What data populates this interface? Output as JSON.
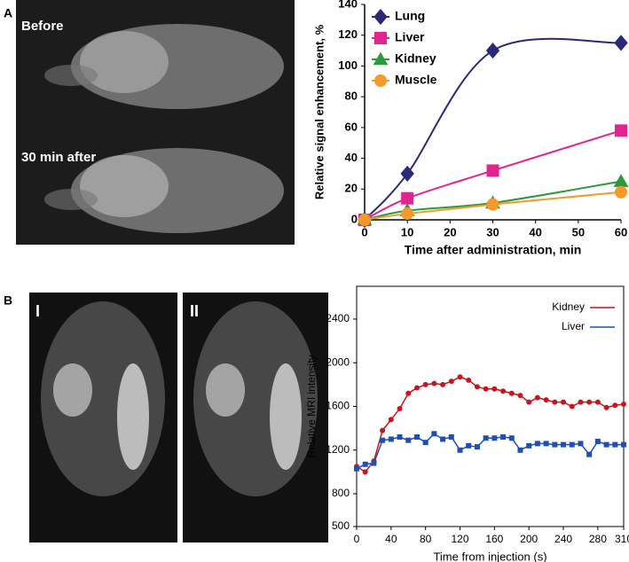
{
  "panels": {
    "a": {
      "label": "A",
      "images": [
        "Before",
        "30 min after"
      ]
    },
    "b": {
      "label": "B",
      "images": [
        "I",
        "II"
      ]
    }
  },
  "chart_data": [
    {
      "type": "line",
      "x": [
        0,
        10,
        30,
        60
      ],
      "xlim": [
        0,
        60
      ],
      "xticks": [
        0,
        10,
        20,
        30,
        40,
        50,
        60
      ],
      "ylim": [
        0,
        140
      ],
      "yticks": [
        0,
        20,
        40,
        60,
        80,
        100,
        120,
        140
      ],
      "xlabel": "Time after administration, min",
      "ylabel": "Relative signal enhancement, %",
      "legend": "upper left",
      "smooth": true,
      "series": [
        {
          "name": "Lung",
          "color": "#2b2878",
          "marker": "diamond",
          "values": [
            0,
            30,
            110,
            115
          ]
        },
        {
          "name": "Liver",
          "color": "#e2248f",
          "marker": "square",
          "values": [
            0,
            14,
            32,
            58
          ]
        },
        {
          "name": "Kidney",
          "color": "#2a9a3c",
          "marker": "triangle",
          "values": [
            0,
            6,
            11,
            25
          ]
        },
        {
          "name": "Muscle",
          "color": "#f39a2b",
          "marker": "circle",
          "values": [
            0,
            4,
            10,
            18
          ]
        }
      ]
    },
    {
      "type": "line",
      "x": [
        0,
        10,
        20,
        30,
        40,
        50,
        60,
        70,
        80,
        90,
        100,
        110,
        120,
        130,
        140,
        150,
        160,
        170,
        180,
        190,
        200,
        210,
        220,
        230,
        240,
        250,
        260,
        270,
        280,
        290,
        300,
        310
      ],
      "xlim": [
        0,
        310
      ],
      "xticks": [
        0,
        40,
        80,
        120,
        160,
        200,
        240,
        280,
        310
      ],
      "ylim": [
        500,
        2700
      ],
      "yticks": [
        500,
        800,
        1200,
        1600,
        2000,
        2400
      ],
      "xlabel": "Time from injection (s)",
      "ylabel": "Relative MRI intensity",
      "legend": "upper right",
      "smooth": false,
      "frame": true,
      "series": [
        {
          "name": "Kidney",
          "color": "#c8141e",
          "marker": "dot",
          "values": [
            1050,
            1000,
            1100,
            1380,
            1480,
            1580,
            1720,
            1770,
            1800,
            1810,
            1800,
            1830,
            1870,
            1840,
            1780,
            1760,
            1760,
            1740,
            1720,
            1700,
            1640,
            1680,
            1660,
            1640,
            1640,
            1600,
            1640,
            1640,
            1640,
            1590,
            1610,
            1620
          ]
        },
        {
          "name": "Liver",
          "color": "#1e4fb4",
          "marker": "smallsquare",
          "values": [
            1030,
            1070,
            1080,
            1290,
            1300,
            1320,
            1290,
            1320,
            1270,
            1350,
            1300,
            1320,
            1200,
            1240,
            1230,
            1310,
            1310,
            1320,
            1310,
            1200,
            1240,
            1260,
            1260,
            1250,
            1250,
            1250,
            1260,
            1160,
            1280,
            1250,
            1250,
            1250
          ]
        }
      ]
    }
  ]
}
